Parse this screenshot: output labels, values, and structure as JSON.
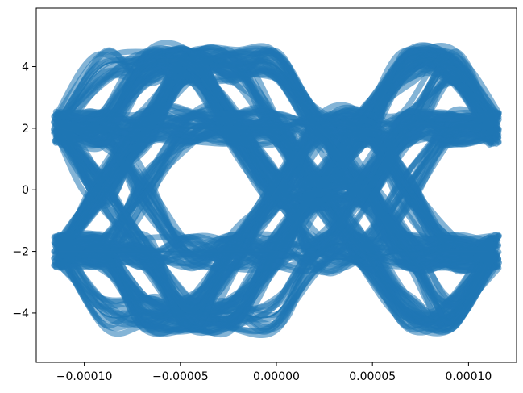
{
  "chart_data": {
    "type": "line",
    "title": "",
    "xlabel": "",
    "ylabel": "",
    "xlim": [
      -0.000125,
      0.000125
    ],
    "ylim": [
      -5.6,
      5.9
    ],
    "x_ticks": [
      -0.0001,
      -5e-05,
      0.0,
      5e-05,
      0.0001
    ],
    "x_tick_labels": [
      "−0.00010",
      "−0.00005",
      "0.00000",
      "0.00005",
      "0.00010"
    ],
    "y_ticks": [
      -4,
      -2,
      0,
      2,
      4
    ],
    "y_tick_labels": [
      "−4",
      "−2",
      "0",
      "2",
      "4"
    ],
    "grid": false,
    "line_color": "#1f77b4",
    "description_of_series": "overlaid eye-diagram traces",
    "x": [
      -0.000113,
      -9.1e-05,
      -6.8e-05,
      -4.5e-05,
      -2.2e-05,
      0.0,
      2.2e-05,
      4.5e-05,
      6.8e-05,
      9.1e-05,
      0.000113
    ],
    "series": [
      {
        "values": [
          2.0,
          2.0,
          2.0,
          4.0,
          4.0,
          4.0,
          2.0,
          0.0,
          2.0,
          2.0,
          2.0
        ]
      },
      {
        "values": [
          2.0,
          0.0,
          2.0,
          4.0,
          4.0,
          2.0,
          0.0,
          -2.0,
          -4.0,
          -4.0,
          -2.0
        ]
      },
      {
        "values": [
          -2.0,
          0.0,
          2.0,
          4.0,
          2.0,
          0.0,
          0.0,
          2.0,
          4.0,
          4.0,
          2.0
        ]
      },
      {
        "values": [
          -2.0,
          -2.0,
          -4.0,
          -4.0,
          -4.0,
          -2.0,
          0.0,
          2.0,
          0.0,
          -2.0,
          -2.0
        ]
      },
      {
        "values": [
          2.0,
          2.0,
          0.0,
          -2.0,
          -2.0,
          -2.0,
          0.0,
          0.0,
          -2.0,
          -2.0,
          -2.0
        ]
      },
      {
        "values": [
          -2.0,
          -2.0,
          0.0,
          2.0,
          2.0,
          2.0,
          0.0,
          0.0,
          2.0,
          2.0,
          2.0
        ]
      },
      {
        "values": [
          2.0,
          4.0,
          4.0,
          4.0,
          2.0,
          0.0,
          -2.0,
          -2.0,
          0.0,
          2.0,
          2.0
        ]
      },
      {
        "values": [
          -2.0,
          -4.0,
          -4.0,
          -4.0,
          -2.0,
          0.0,
          2.0,
          2.0,
          0.0,
          -2.0,
          -2.0
        ]
      },
      {
        "values": [
          2.0,
          2.0,
          4.0,
          4.0,
          4.0,
          4.0,
          2.0,
          2.0,
          4.0,
          4.0,
          2.0
        ]
      },
      {
        "values": [
          -2.0,
          -2.0,
          -4.0,
          -4.0,
          -4.0,
          -4.0,
          -2.0,
          -2.0,
          -4.0,
          -4.0,
          -2.0
        ]
      },
      {
        "values": [
          2.0,
          0.0,
          -2.0,
          -4.0,
          -4.0,
          -2.0,
          0.0,
          2.0,
          4.0,
          4.0,
          2.0
        ]
      },
      {
        "values": [
          -2.0,
          0.0,
          2.0,
          2.0,
          2.0,
          2.0,
          0.0,
          -2.0,
          -2.0,
          -2.0,
          -2.0
        ]
      },
      {
        "values": [
          2.0,
          2.0,
          4.0,
          4.0,
          2.0,
          0.0,
          0.0,
          0.0,
          -2.0,
          -4.0,
          -2.0
        ]
      },
      {
        "values": [
          -2.0,
          -2.0,
          -2.0,
          -4.0,
          -2.0,
          0.0,
          2.0,
          2.0,
          2.0,
          4.0,
          2.0
        ]
      },
      {
        "values": [
          2.0,
          2.0,
          2.0,
          2.0,
          2.0,
          2.0,
          2.0,
          0.0,
          -2.0,
          -2.0,
          -2.0
        ]
      },
      {
        "values": [
          -2.0,
          -2.0,
          -2.0,
          -2.0,
          -2.0,
          -2.0,
          -2.0,
          0.0,
          2.0,
          2.0,
          2.0
        ]
      }
    ]
  }
}
